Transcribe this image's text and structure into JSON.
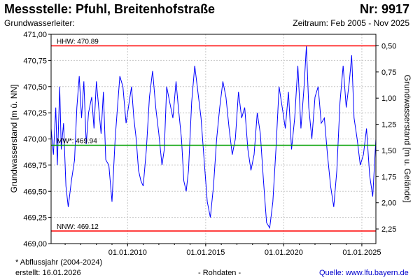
{
  "header": {
    "station_title": "Messstelle: Pfuhl, Breitenhofstraße",
    "station_number": "Nr: 9917",
    "aquifer_label": "Grundwasserleiter:",
    "period": "Zeitraum: Feb 2005 - Nov 2025"
  },
  "footer": {
    "note": "* Abflussjahr (2004-2024)",
    "created": "erstellt:  16.01.2026",
    "data_type": "- Rohdaten -",
    "source": "Quelle: www.lfu.bayern.de"
  },
  "colors": {
    "series": "#0000ff",
    "hhw_nnw": "#ff0000",
    "mw": "#00a000",
    "grid": "#c8c8c8"
  },
  "chart_data": {
    "type": "line",
    "xlabel": "",
    "ylabel": "Grundwasserstand [m ü. NN]",
    "ylabel_right": "Grundwasserstand [m u. Gelände]",
    "ylim": [
      469.0,
      471.0
    ],
    "yticks": [
      "469,00",
      "469,25",
      "469,50",
      "469,75",
      "470,00",
      "470,25",
      "470,50",
      "470,75",
      "471,00"
    ],
    "yticks_right": [
      "0,50",
      "0,75",
      "1,00",
      "1,25",
      "1,50",
      "1,75",
      "2,00",
      "2,25"
    ],
    "right_axis_offset": 471.39,
    "xlim": [
      2005.1,
      2025.9
    ],
    "xticks": [
      "01.01.2010",
      "01.01.2015",
      "01.01.2020",
      "01.01.2025"
    ],
    "xtick_years": [
      2010.0,
      2015.0,
      2020.0,
      2025.0
    ],
    "reference_lines": [
      {
        "label": "HHW: 470.89",
        "value": 470.89,
        "color": "#ff0000"
      },
      {
        "label": "MW*: 469.94",
        "value": 469.94,
        "color": "#00a000"
      },
      {
        "label": "NNW: 469.12",
        "value": 469.12,
        "color": "#ff0000"
      }
    ],
    "series": [
      {
        "x": [
          2005.1,
          2005.25,
          2005.4,
          2005.5,
          2005.65,
          2005.75,
          2005.9,
          2006.05,
          2006.2,
          2006.4,
          2006.6,
          2006.75,
          2006.9,
          2007.05,
          2007.2,
          2007.35,
          2007.5,
          2007.7,
          2007.85,
          2008.0,
          2008.15,
          2008.3,
          2008.45,
          2008.6,
          2008.8,
          2009.0,
          2009.2,
          2009.35,
          2009.5,
          2009.7,
          2009.9,
          2010.1,
          2010.25,
          2010.4,
          2010.55,
          2010.7,
          2010.85,
          2011.0,
          2011.2,
          2011.4,
          2011.6,
          2011.8,
          2012.0,
          2012.2,
          2012.35,
          2012.5,
          2012.7,
          2012.9,
          2013.1,
          2013.25,
          2013.45,
          2013.6,
          2013.75,
          2013.9,
          2014.1,
          2014.3,
          2014.5,
          2014.7,
          2014.9,
          2015.1,
          2015.3,
          2015.5,
          2015.7,
          2015.9,
          2016.1,
          2016.3,
          2016.5,
          2016.7,
          2016.9,
          2017.1,
          2017.3,
          2017.5,
          2017.7,
          2017.9,
          2018.1,
          2018.3,
          2018.5,
          2018.7,
          2018.9,
          2019.1,
          2019.3,
          2019.5,
          2019.7,
          2019.9,
          2020.1,
          2020.3,
          2020.5,
          2020.7,
          2020.9,
          2021.1,
          2021.3,
          2021.45,
          2021.6,
          2021.8,
          2022.0,
          2022.2,
          2022.4,
          2022.6,
          2022.8,
          2023.0,
          2023.2,
          2023.4,
          2023.6,
          2023.8,
          2024.0,
          2024.2,
          2024.35,
          2024.5,
          2024.7,
          2024.9,
          2025.1,
          2025.3,
          2025.5,
          2025.7,
          2025.9
        ],
        "values": [
          470.1,
          469.85,
          470.3,
          469.75,
          470.5,
          469.9,
          470.15,
          469.55,
          469.35,
          469.6,
          469.8,
          470.3,
          470.6,
          470.2,
          470.55,
          469.95,
          470.25,
          470.4,
          470.1,
          470.55,
          470.3,
          470.05,
          470.45,
          469.8,
          469.75,
          469.4,
          470.0,
          470.3,
          470.6,
          470.5,
          470.15,
          470.35,
          470.5,
          470.2,
          470.0,
          469.7,
          469.6,
          469.55,
          469.9,
          470.4,
          470.65,
          470.3,
          470.05,
          469.75,
          469.9,
          470.5,
          470.35,
          470.2,
          470.55,
          470.3,
          470.0,
          469.6,
          469.5,
          469.7,
          470.35,
          470.7,
          470.45,
          470.2,
          469.8,
          469.4,
          469.25,
          469.55,
          470.0,
          470.3,
          470.55,
          470.4,
          470.1,
          469.85,
          470.0,
          470.45,
          470.2,
          470.3,
          469.9,
          469.7,
          469.85,
          470.25,
          470.05,
          469.6,
          469.2,
          469.15,
          469.4,
          469.9,
          470.5,
          470.3,
          470.1,
          470.45,
          469.9,
          470.2,
          470.7,
          470.1,
          470.5,
          470.89,
          470.3,
          470.0,
          470.4,
          470.5,
          470.15,
          470.2,
          469.85,
          469.55,
          469.35,
          469.7,
          470.35,
          470.7,
          470.3,
          470.55,
          470.8,
          470.2,
          470.0,
          469.75,
          469.85,
          470.1,
          469.65,
          469.45,
          470.0
        ]
      }
    ]
  }
}
